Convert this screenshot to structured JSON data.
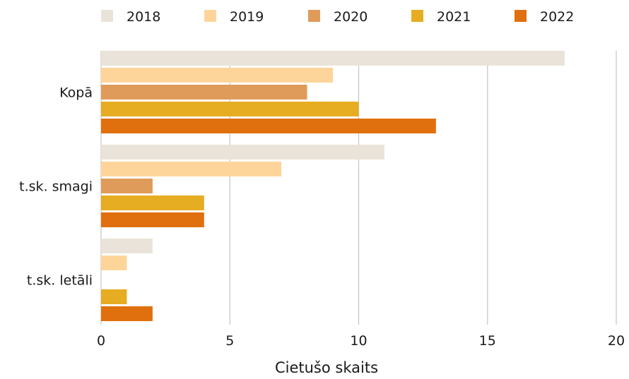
{
  "chart_data": {
    "type": "bar",
    "orientation": "horizontal",
    "categories": [
      "Kopā",
      "t.sk. smagi",
      "t.sk. letāli"
    ],
    "series": [
      {
        "name": "2018",
        "color": "#EAE3D9",
        "values": [
          18,
          11,
          2
        ]
      },
      {
        "name": "2019",
        "color": "#FDD59B",
        "values": [
          9,
          7,
          1
        ]
      },
      {
        "name": "2020",
        "color": "#DF9B5A",
        "values": [
          8,
          2,
          0
        ]
      },
      {
        "name": "2021",
        "color": "#E6AC22",
        "values": [
          10,
          4,
          1
        ]
      },
      {
        "name": "2022",
        "color": "#E0700E",
        "values": [
          13,
          4,
          2
        ]
      }
    ],
    "xlabel": "Cietušo skaits",
    "ylabel": "",
    "xlim": [
      0,
      20
    ],
    "xticks": [
      "0",
      "5",
      "10",
      "15",
      "20"
    ],
    "grid": "vertical",
    "legend_position": "top"
  }
}
